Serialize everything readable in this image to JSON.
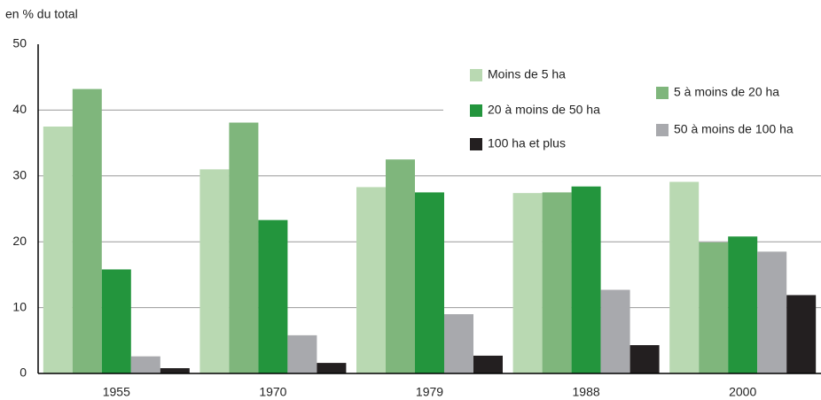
{
  "chart_data": {
    "type": "bar",
    "y_axis_label": "en % du total",
    "categories": [
      "1955",
      "1970",
      "1979",
      "1988",
      "2000"
    ],
    "series": [
      {
        "name": "Moins de 5 ha",
        "color": "#b9d9b2",
        "values": [
          37.5,
          31.0,
          28.3,
          27.4,
          29.1
        ]
      },
      {
        "name": "5 à moins de 20 ha",
        "color": "#7fb67c",
        "values": [
          43.2,
          38.1,
          32.5,
          27.5,
          19.9
        ]
      },
      {
        "name": "20 à moins de 50 ha",
        "color": "#23953d",
        "values": [
          15.8,
          23.3,
          27.5,
          28.4,
          20.8
        ]
      },
      {
        "name": "50 à moins de 100 ha",
        "color": "#a8a9ad",
        "values": [
          2.6,
          5.8,
          9.0,
          12.7,
          18.5
        ]
      },
      {
        "name": "100 ha et plus",
        "color": "#231f20",
        "values": [
          0.8,
          1.6,
          2.7,
          4.3,
          11.9
        ]
      }
    ],
    "ylim": [
      0,
      50
    ],
    "yticks": [
      0,
      10,
      20,
      30,
      40,
      50
    ],
    "grid": true
  }
}
